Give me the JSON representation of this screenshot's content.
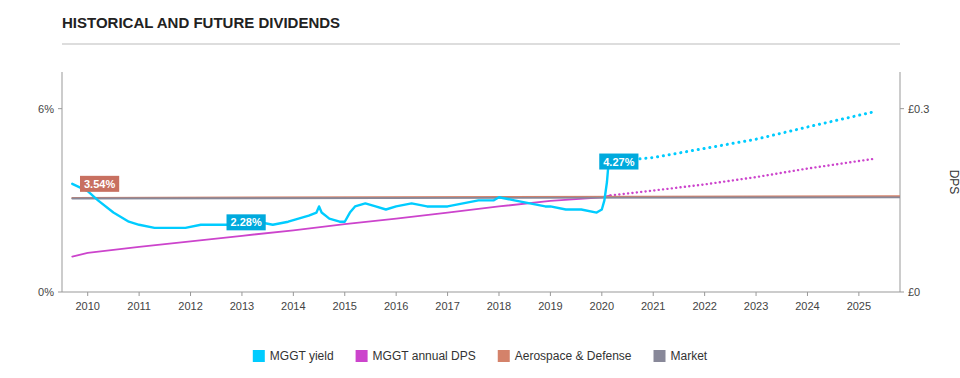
{
  "chart_data": {
    "type": "line",
    "title": "HISTORICAL AND FUTURE DIVIDENDS",
    "y2label": "DPS",
    "xlim": [
      2009.5,
      2025.8
    ],
    "xticks": [
      2010,
      2011,
      2012,
      2013,
      2014,
      2015,
      2016,
      2017,
      2018,
      2019,
      2020,
      2021,
      2022,
      2023,
      2024,
      2025
    ],
    "ylim": [
      0,
      0.072
    ],
    "yticks": [
      {
        "value": 0,
        "label": "0%"
      },
      {
        "value": 0.06,
        "label": "6%"
      }
    ],
    "y2lim": [
      0,
      0.36
    ],
    "y2ticks": [
      {
        "value": 0,
        "label": "£0"
      },
      {
        "value": 0.3,
        "label": "£0.3"
      }
    ],
    "grid": false,
    "legend": "bottom",
    "series": [
      {
        "name": "MGGT yield",
        "color": "#00ccff",
        "line_style": "solid",
        "x": [
          2009.7,
          2010.0,
          2010.2,
          2010.5,
          2010.8,
          2011.0,
          2011.3,
          2011.6,
          2011.9,
          2012.2,
          2012.5,
          2012.8,
          2013.0,
          2013.3,
          2013.6,
          2013.9,
          2014.1,
          2014.3,
          2014.45,
          2014.5,
          2014.55,
          2014.7,
          2014.9,
          2015.0,
          2015.1,
          2015.2,
          2015.4,
          2015.6,
          2015.8,
          2016.0,
          2016.3,
          2016.6,
          2016.9,
          2017.0,
          2017.3,
          2017.6,
          2017.9,
          2018.0,
          2018.3,
          2018.6,
          2018.9,
          2019.0,
          2019.3,
          2019.6,
          2019.9,
          2020.0,
          2020.05,
          2020.1,
          2020.13,
          2020.17
        ],
        "values": [
          0.0354,
          0.033,
          0.03,
          0.026,
          0.023,
          0.022,
          0.021,
          0.021,
          0.021,
          0.022,
          0.022,
          0.022,
          0.0228,
          0.023,
          0.022,
          0.023,
          0.024,
          0.025,
          0.026,
          0.028,
          0.026,
          0.024,
          0.023,
          0.023,
          0.026,
          0.028,
          0.029,
          0.028,
          0.027,
          0.028,
          0.029,
          0.028,
          0.028,
          0.028,
          0.029,
          0.03,
          0.03,
          0.031,
          0.03,
          0.029,
          0.028,
          0.028,
          0.027,
          0.027,
          0.026,
          0.027,
          0.03,
          0.036,
          0.042,
          0.0427
        ]
      },
      {
        "color": "#00ccff",
        "line_style": "dotted",
        "x": [
          2020.17,
          2021.0,
          2022.0,
          2023.0,
          2024.0,
          2025.3
        ],
        "values": [
          0.0427,
          0.044,
          0.047,
          0.05,
          0.054,
          0.059
        ]
      },
      {
        "name": "MGGT annual DPS",
        "color": "#cc44cc",
        "line_style": "solid",
        "axis": "y2",
        "x": [
          2009.7,
          2010.0,
          2011.0,
          2012.0,
          2013.0,
          2014.0,
          2015.0,
          2016.0,
          2017.0,
          2018.0,
          2019.0,
          2020.0,
          2020.17
        ],
        "values": [
          0.058,
          0.064,
          0.074,
          0.083,
          0.092,
          0.101,
          0.111,
          0.12,
          0.13,
          0.14,
          0.149,
          0.155,
          0.158
        ]
      },
      {
        "color": "#cc44cc",
        "line_style": "dotted",
        "axis": "y2",
        "x": [
          2020.17,
          2021.0,
          2022.0,
          2023.0,
          2024.0,
          2025.3
        ],
        "values": [
          0.158,
          0.166,
          0.176,
          0.188,
          0.202,
          0.218
        ]
      },
      {
        "name": "Aerospace & Defense",
        "color": "#d4826a",
        "line_style": "solid",
        "axis": "y2",
        "x": [
          2009.7,
          2025.8
        ],
        "values": [
          0.154,
          0.157
        ]
      },
      {
        "name": "Market",
        "color": "#888899",
        "line_style": "solid",
        "axis": "y2",
        "x": [
          2009.7,
          2025.8
        ],
        "values": [
          0.153,
          0.155
        ]
      }
    ],
    "annotations": [
      {
        "text": "3.54%",
        "x": 2009.85,
        "y": 0.0354,
        "color": "#c87060"
      },
      {
        "text": "2.28%",
        "x": 2012.7,
        "y": 0.0228,
        "color": "#00aadd"
      },
      {
        "text": "4.27%",
        "x": 2019.95,
        "y": 0.0427,
        "color": "#00aadd"
      }
    ]
  }
}
